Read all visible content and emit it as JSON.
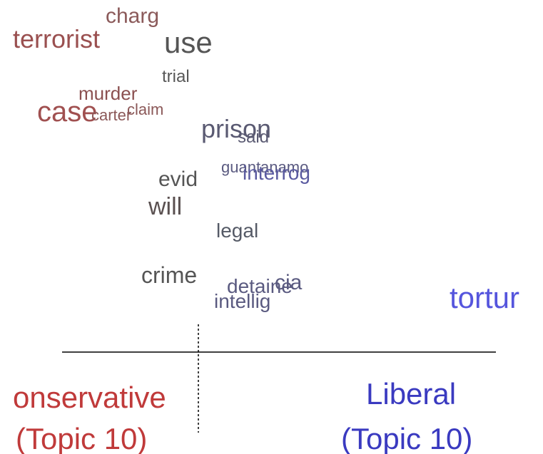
{
  "words": [
    "charg",
    "terrorist",
    "use",
    "trial",
    "murder",
    "case",
    "claim",
    "carter",
    "prison",
    "said",
    "guantanamo",
    "interrog",
    "evid",
    "will",
    "legal",
    "crime",
    "cia",
    "detaine",
    "intellig",
    "tortur"
  ],
  "labels": {
    "left": {
      "name": "onservative",
      "topic": "(Topic 10)"
    },
    "right": {
      "name": "Liberal",
      "topic": "(Topic 10)"
    }
  }
}
